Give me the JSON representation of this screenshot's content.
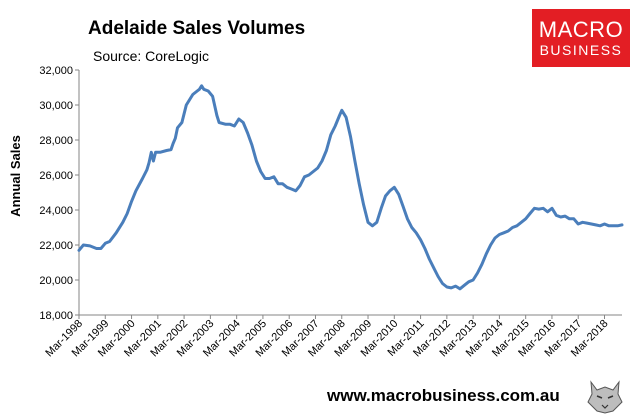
{
  "header": {
    "title": "Adelaide Sales Volumes",
    "source": "Source: CoreLogic"
  },
  "logo": {
    "line1": "MACRO",
    "line2": "BUSINESS",
    "color": "#e31e24"
  },
  "footer": {
    "url": "www.macrobusiness.com.au",
    "icon": "wolf-logo-icon"
  },
  "chart_data": {
    "type": "line",
    "title": "Adelaide Sales Volumes",
    "xlabel": "",
    "ylabel": "Annual Sales",
    "ylim": [
      18000,
      32000
    ],
    "yticks": [
      18000,
      20000,
      22000,
      24000,
      26000,
      28000,
      30000,
      32000
    ],
    "ytick_labels": [
      "18,000",
      "20,000",
      "22,000",
      "24,000",
      "26,000",
      "28,000",
      "30,000",
      "32,000"
    ],
    "xlim": [
      1998.167,
      2018.833
    ],
    "xticks": [
      1998.167,
      1999.167,
      2000.167,
      2001.167,
      2002.167,
      2003.167,
      2004.167,
      2005.167,
      2006.167,
      2007.167,
      2008.167,
      2009.167,
      2010.167,
      2011.167,
      2012.167,
      2013.167,
      2014.167,
      2015.167,
      2016.167,
      2017.167,
      2018.167
    ],
    "xtick_labels": [
      "Mar-1998",
      "Mar-1999",
      "Mar-2000",
      "Mar-2001",
      "Mar-2002",
      "Mar-2003",
      "Mar-2004",
      "Mar-2005",
      "Mar-2006",
      "Mar-2007",
      "Mar-2008",
      "Mar-2009",
      "Mar-2010",
      "Mar-2011",
      "Mar-2012",
      "Mar-2013",
      "Mar-2014",
      "Mar-2015",
      "Mar-2016",
      "Mar-2017",
      "Mar-2018"
    ],
    "grid": false,
    "legend": "none",
    "series": [
      {
        "color": "#4a7ebb",
        "points": [
          [
            1998.167,
            21700
          ],
          [
            1998.333,
            22000
          ],
          [
            1998.583,
            21950
          ],
          [
            1998.833,
            21800
          ],
          [
            1999.0,
            21800
          ],
          [
            1999.167,
            22100
          ],
          [
            1999.333,
            22200
          ],
          [
            1999.583,
            22700
          ],
          [
            1999.833,
            23300
          ],
          [
            2000.0,
            23800
          ],
          [
            2000.167,
            24500
          ],
          [
            2000.333,
            25100
          ],
          [
            2000.583,
            25800
          ],
          [
            2000.75,
            26300
          ],
          [
            2000.833,
            26700
          ],
          [
            2000.917,
            27300
          ],
          [
            2001.0,
            26800
          ],
          [
            2001.083,
            27300
          ],
          [
            2001.25,
            27300
          ],
          [
            2001.5,
            27400
          ],
          [
            2001.667,
            27450
          ],
          [
            2001.75,
            27800
          ],
          [
            2001.833,
            28100
          ],
          [
            2001.917,
            28700
          ],
          [
            2002.083,
            29000
          ],
          [
            2002.25,
            30000
          ],
          [
            2002.5,
            30600
          ],
          [
            2002.667,
            30800
          ],
          [
            2002.75,
            30900
          ],
          [
            2002.833,
            31100
          ],
          [
            2002.917,
            30900
          ],
          [
            2003.083,
            30800
          ],
          [
            2003.25,
            30500
          ],
          [
            2003.417,
            29400
          ],
          [
            2003.5,
            29000
          ],
          [
            2003.75,
            28900
          ],
          [
            2003.917,
            28900
          ],
          [
            2004.083,
            28800
          ],
          [
            2004.25,
            29200
          ],
          [
            2004.417,
            29000
          ],
          [
            2004.583,
            28400
          ],
          [
            2004.75,
            27700
          ],
          [
            2004.917,
            26800
          ],
          [
            2005.083,
            26200
          ],
          [
            2005.25,
            25800
          ],
          [
            2005.417,
            25800
          ],
          [
            2005.583,
            25900
          ],
          [
            2005.75,
            25500
          ],
          [
            2005.917,
            25500
          ],
          [
            2006.083,
            25300
          ],
          [
            2006.25,
            25200
          ],
          [
            2006.417,
            25100
          ],
          [
            2006.583,
            25400
          ],
          [
            2006.75,
            25900
          ],
          [
            2006.917,
            26000
          ],
          [
            2007.083,
            26200
          ],
          [
            2007.25,
            26400
          ],
          [
            2007.417,
            26800
          ],
          [
            2007.583,
            27400
          ],
          [
            2007.75,
            28300
          ],
          [
            2007.917,
            28800
          ],
          [
            2008.083,
            29400
          ],
          [
            2008.167,
            29700
          ],
          [
            2008.333,
            29300
          ],
          [
            2008.5,
            28200
          ],
          [
            2008.667,
            26800
          ],
          [
            2008.833,
            25500
          ],
          [
            2009.0,
            24300
          ],
          [
            2009.167,
            23300
          ],
          [
            2009.333,
            23100
          ],
          [
            2009.5,
            23300
          ],
          [
            2009.667,
            24100
          ],
          [
            2009.833,
            24800
          ],
          [
            2010.0,
            25100
          ],
          [
            2010.167,
            25300
          ],
          [
            2010.333,
            24900
          ],
          [
            2010.5,
            24200
          ],
          [
            2010.667,
            23500
          ],
          [
            2010.833,
            23000
          ],
          [
            2011.0,
            22700
          ],
          [
            2011.167,
            22300
          ],
          [
            2011.333,
            21800
          ],
          [
            2011.5,
            21200
          ],
          [
            2011.667,
            20700
          ],
          [
            2011.833,
            20200
          ],
          [
            2012.0,
            19800
          ],
          [
            2012.167,
            19600
          ],
          [
            2012.333,
            19550
          ],
          [
            2012.5,
            19650
          ],
          [
            2012.667,
            19500
          ],
          [
            2012.833,
            19700
          ],
          [
            2013.0,
            19900
          ],
          [
            2013.167,
            20000
          ],
          [
            2013.333,
            20400
          ],
          [
            2013.5,
            20900
          ],
          [
            2013.667,
            21500
          ],
          [
            2013.833,
            22000
          ],
          [
            2014.0,
            22400
          ],
          [
            2014.167,
            22600
          ],
          [
            2014.333,
            22700
          ],
          [
            2014.5,
            22800
          ],
          [
            2014.667,
            23000
          ],
          [
            2014.833,
            23100
          ],
          [
            2015.0,
            23300
          ],
          [
            2015.167,
            23500
          ],
          [
            2015.333,
            23800
          ],
          [
            2015.5,
            24100
          ],
          [
            2015.667,
            24050
          ],
          [
            2015.833,
            24100
          ],
          [
            2016.0,
            23900
          ],
          [
            2016.167,
            24100
          ],
          [
            2016.333,
            23700
          ],
          [
            2016.5,
            23600
          ],
          [
            2016.667,
            23650
          ],
          [
            2016.833,
            23500
          ],
          [
            2017.0,
            23500
          ],
          [
            2017.167,
            23200
          ],
          [
            2017.333,
            23300
          ],
          [
            2017.5,
            23250
          ],
          [
            2017.667,
            23200
          ],
          [
            2017.833,
            23150
          ],
          [
            2018.0,
            23100
          ],
          [
            2018.167,
            23200
          ],
          [
            2018.333,
            23100
          ],
          [
            2018.5,
            23100
          ],
          [
            2018.667,
            23100
          ],
          [
            2018.833,
            23150
          ]
        ]
      }
    ]
  }
}
